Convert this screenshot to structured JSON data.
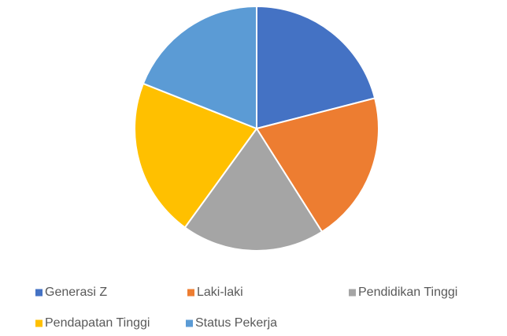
{
  "chart_data": {
    "type": "pie",
    "categories": [
      "Generasi Z",
      "Laki-laki",
      "Pendidikan Tinggi",
      "Pendapatan Tinggi",
      "Status Pekerja"
    ],
    "values": [
      21,
      20,
      19,
      21,
      19
    ],
    "colors": [
      "#4472c4",
      "#ed7d31",
      "#a5a5a5",
      "#ffc000",
      "#5b9bd5"
    ],
    "legend": "bottom"
  }
}
